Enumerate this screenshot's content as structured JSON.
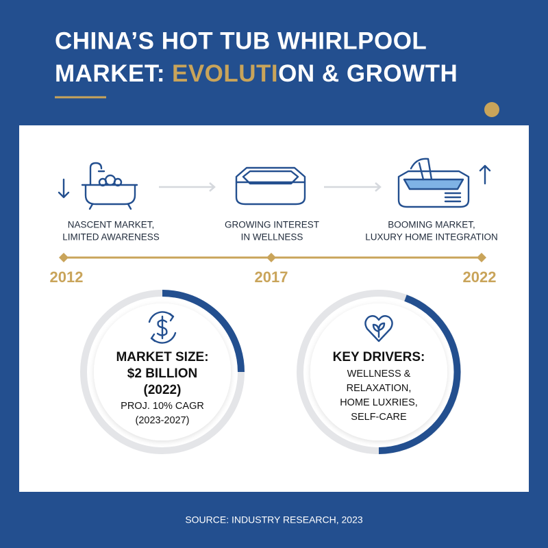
{
  "header": {
    "title_line1": "CHINA’S HOT TUB WHIRLPOOL",
    "title_line2_start": "MARKET:",
    "title_line2_highlight": "EVOLUTI",
    "title_line2_end": "ON & GROWTH"
  },
  "timeline": [
    {
      "label_lines": [
        "NASCENT MARKET,",
        "LIMITED AWARENESS"
      ],
      "year": "2012"
    },
    {
      "label_lines": [
        "GROWING INTEREST",
        "IN WELLNESS"
      ],
      "year": "2017"
    },
    {
      "label_lines": [
        "BOOMING MARKET,",
        "LUXURY HOME INTEGRATION"
      ],
      "year": "2022"
    }
  ],
  "market_size": {
    "heading_lines": [
      "MARKET SIZE:",
      "$2 BILLION",
      "(2022)"
    ],
    "detail_lines": [
      "PROJ. 10% CAGR",
      "(2023-2027)"
    ]
  },
  "key_drivers": {
    "heading": "KEY DRIVERS:",
    "lines": [
      "WELLNESS &",
      "RELAXATION,",
      "HOME LUXRIES,",
      "SELF-CARE"
    ]
  },
  "footer": {
    "source": "SOURCE: INDUSTRY RESEARCH, 2023"
  }
}
